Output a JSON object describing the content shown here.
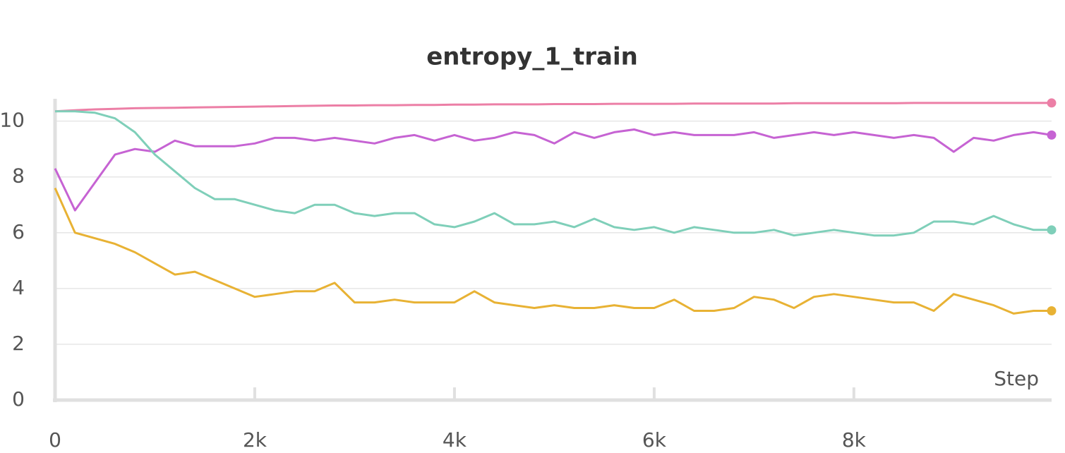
{
  "chart_data": {
    "type": "line",
    "title": "entropy_1_train",
    "x_label": "Step",
    "x": [
      0,
      200,
      400,
      600,
      800,
      1000,
      1200,
      1400,
      1600,
      1800,
      2000,
      2200,
      2400,
      2600,
      2800,
      3000,
      3200,
      3400,
      3600,
      3800,
      4000,
      4200,
      4400,
      4600,
      4800,
      5000,
      5200,
      5400,
      5600,
      5800,
      6000,
      6200,
      6400,
      6600,
      6800,
      7000,
      7200,
      7400,
      7600,
      7800,
      8000,
      8200,
      8400,
      8600,
      8800,
      9000,
      9200,
      9400,
      9600,
      9800,
      9980
    ],
    "series": [
      {
        "color": "#ec7fa6",
        "values": [
          10.35,
          10.39,
          10.42,
          10.44,
          10.46,
          10.47,
          10.48,
          10.49,
          10.5,
          10.51,
          10.52,
          10.53,
          10.54,
          10.55,
          10.56,
          10.56,
          10.57,
          10.57,
          10.58,
          10.58,
          10.59,
          10.59,
          10.6,
          10.6,
          10.6,
          10.61,
          10.61,
          10.61,
          10.62,
          10.62,
          10.62,
          10.62,
          10.63,
          10.63,
          10.63,
          10.63,
          10.63,
          10.64,
          10.64,
          10.64,
          10.64,
          10.64,
          10.64,
          10.65,
          10.65,
          10.65,
          10.65,
          10.65,
          10.65,
          10.65,
          10.65
        ]
      },
      {
        "color": "#c663d3",
        "values": [
          8.3,
          6.8,
          7.8,
          8.8,
          9.0,
          8.9,
          9.3,
          9.1,
          9.1,
          9.1,
          9.2,
          9.4,
          9.4,
          9.3,
          9.4,
          9.3,
          9.2,
          9.4,
          9.5,
          9.3,
          9.5,
          9.3,
          9.4,
          9.6,
          9.5,
          9.2,
          9.6,
          9.4,
          9.6,
          9.7,
          9.5,
          9.6,
          9.5,
          9.5,
          9.5,
          9.6,
          9.4,
          9.5,
          9.6,
          9.5,
          9.6,
          9.5,
          9.4,
          9.5,
          9.4,
          8.9,
          9.4,
          9.3,
          9.5,
          9.6,
          9.5
        ]
      },
      {
        "color": "#7fcfb9",
        "values": [
          10.35,
          10.35,
          10.3,
          10.1,
          9.6,
          8.8,
          8.2,
          7.6,
          7.2,
          7.2,
          7.0,
          6.8,
          6.7,
          7.0,
          7.0,
          6.7,
          6.6,
          6.7,
          6.7,
          6.3,
          6.2,
          6.4,
          6.7,
          6.3,
          6.3,
          6.4,
          6.2,
          6.5,
          6.2,
          6.1,
          6.2,
          6.0,
          6.2,
          6.1,
          6.0,
          6.0,
          6.1,
          5.9,
          6.0,
          6.1,
          6.0,
          5.9,
          5.9,
          6.0,
          6.4,
          6.4,
          6.3,
          6.6,
          6.3,
          6.1,
          6.1
        ]
      },
      {
        "color": "#e8b234",
        "values": [
          7.6,
          6.0,
          5.8,
          5.6,
          5.3,
          4.9,
          4.5,
          4.6,
          4.3,
          4.0,
          3.7,
          3.8,
          3.9,
          3.9,
          4.2,
          3.5,
          3.5,
          3.6,
          3.5,
          3.5,
          3.5,
          3.9,
          3.5,
          3.4,
          3.3,
          3.4,
          3.3,
          3.3,
          3.4,
          3.3,
          3.3,
          3.6,
          3.2,
          3.2,
          3.3,
          3.7,
          3.6,
          3.3,
          3.7,
          3.8,
          3.7,
          3.6,
          3.5,
          3.5,
          3.2,
          3.8,
          3.6,
          3.4,
          3.1,
          3.2,
          3.2
        ]
      }
    ],
    "xlim": [
      0,
      9980
    ],
    "xticks": [
      0,
      {
        "value": 2000,
        "label": "2k"
      },
      {
        "value": 4000,
        "label": "4k"
      },
      {
        "value": 6000,
        "label": "6k"
      },
      {
        "value": 8000,
        "label": "8k"
      }
    ],
    "ylim": [
      0,
      10.8
    ],
    "yticks": [
      0,
      2,
      4,
      6,
      8,
      10
    ],
    "grid": true
  }
}
